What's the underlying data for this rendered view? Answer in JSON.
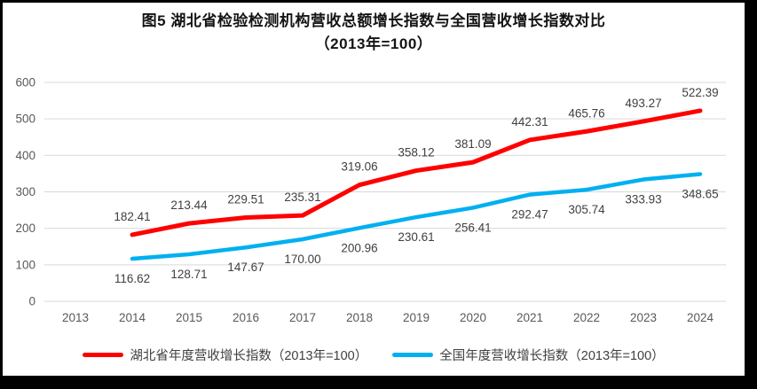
{
  "title": {
    "line1": "图5 湖北省检验检测机构营收总额增长指数与全国营收增长指数对比",
    "line2": "（2013年=100）"
  },
  "legend": [
    {
      "key": "hubei",
      "label": "湖北省年度营收增长指数（2013年=100）",
      "color": "#FF0000"
    },
    {
      "key": "national",
      "label": "全国年度营收增长指数（2013年=100）",
      "color": "#00B0F0"
    }
  ],
  "colors": {
    "frame": "#000000",
    "background": "#FFFFFF",
    "grid": "#D9D9D9",
    "axis_text": "#595959",
    "data_label": "#404040",
    "title_text": "#141414"
  },
  "chart_data": {
    "type": "line",
    "title": "图5 湖北省检验检测机构营收总额增长指数与全国营收增长指数对比（2013年=100）",
    "categories": [
      "2013",
      "2014",
      "2015",
      "2016",
      "2017",
      "2018",
      "2019",
      "2020",
      "2021",
      "2022",
      "2023",
      "2024"
    ],
    "series": [
      {
        "key": "hubei",
        "name": "湖北省年度营收增长指数（2013年=100）",
        "color": "#FF0000",
        "values": [
          null,
          182.41,
          213.44,
          229.51,
          235.31,
          319.06,
          358.12,
          381.09,
          442.31,
          465.76,
          493.27,
          522.39
        ],
        "labels": [
          null,
          "182.41",
          "213.44",
          "229.51",
          "235.31",
          "319.06",
          "358.12",
          "381.09",
          "442.31",
          "465.76",
          "493.27",
          "522.39"
        ],
        "label_position": "above"
      },
      {
        "key": "national",
        "name": "全国年度营收增长指数（2013年=100）",
        "color": "#00B0F0",
        "values": [
          null,
          116.62,
          128.71,
          147.67,
          170.0,
          200.96,
          230.61,
          256.41,
          292.47,
          305.74,
          333.93,
          348.65
        ],
        "labels": [
          null,
          "116.62",
          "128.71",
          "147.67",
          "170.00",
          "200.96",
          "230.61",
          "256.41",
          "292.47",
          "305.74",
          "333.93",
          "348.65"
        ],
        "label_position": "below"
      }
    ],
    "ylim": [
      0,
      600
    ],
    "ytick_step": 100,
    "yticks": [
      "0",
      "100",
      "200",
      "300",
      "400",
      "500",
      "600"
    ],
    "grid": true,
    "legend_position": "bottom"
  }
}
